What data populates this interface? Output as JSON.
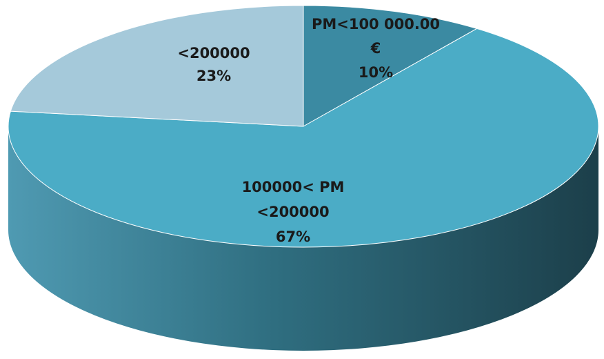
{
  "chart_data": {
    "type": "pie",
    "style": "3d",
    "legend": "none",
    "title": "",
    "slices": [
      {
        "name": "PM<100 000.00 €",
        "value": 10,
        "label_lines": [
          "PM<100 000.00",
          "€",
          "10%"
        ],
        "color": "#3B8AA2"
      },
      {
        "name": "100000< PM <200000",
        "value": 67,
        "label_lines": [
          "100000< PM",
          "<200000",
          "67%"
        ],
        "color": "#4BACC6"
      },
      {
        "name": "<200000",
        "value": 23,
        "label_lines": [
          "<200000",
          "23%"
        ],
        "color": "#A5C9DA"
      }
    ]
  }
}
